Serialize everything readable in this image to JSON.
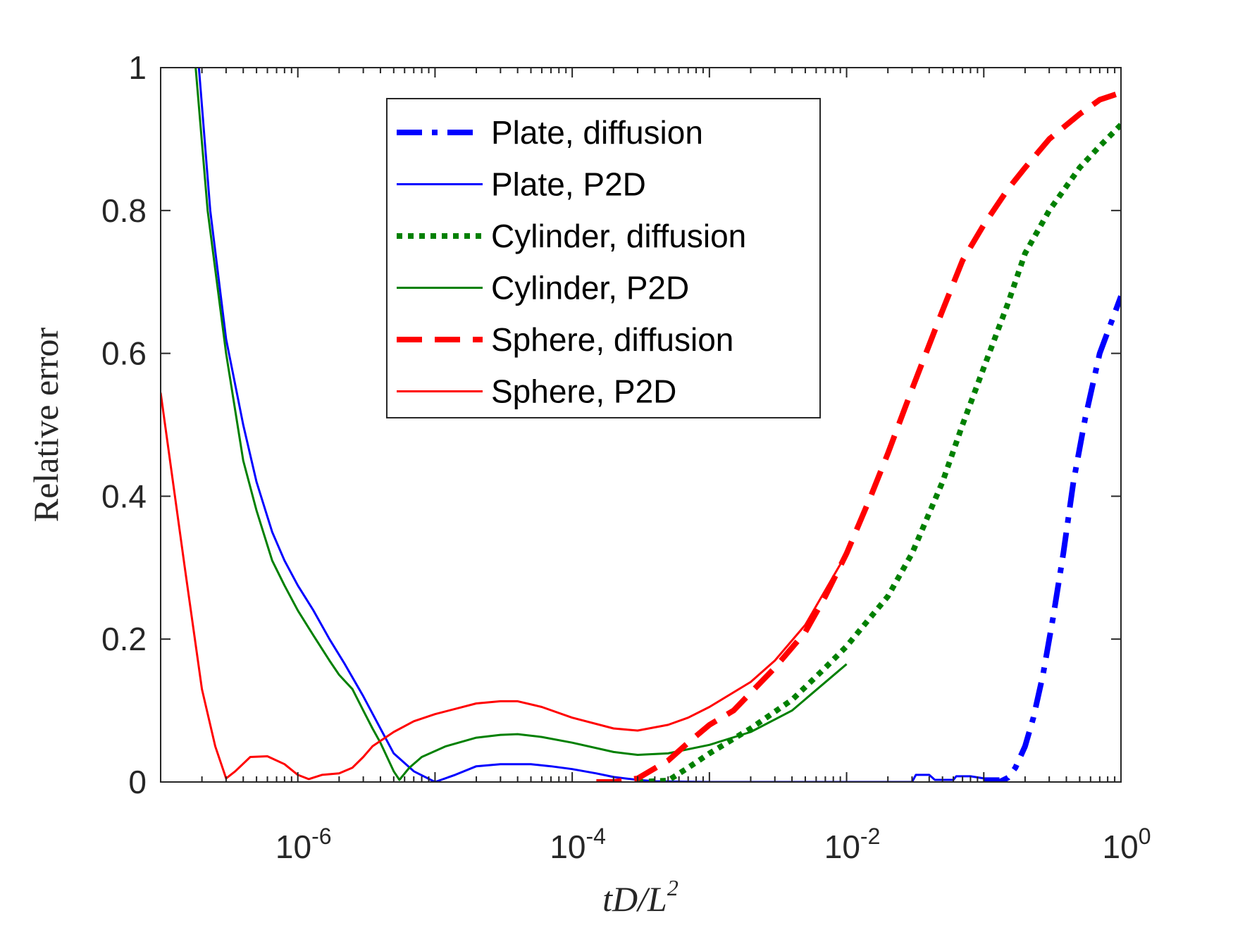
{
  "chart_data": {
    "type": "line",
    "x_scale": "log",
    "xlim": [
      1e-07,
      1
    ],
    "ylim": [
      0,
      1
    ],
    "xlabel": "tD/L²",
    "ylabel": "Relative error",
    "x_ticks": [
      {
        "value": 1e-06,
        "base": "10",
        "exp": "-6"
      },
      {
        "value": 0.0001,
        "base": "10",
        "exp": "-4"
      },
      {
        "value": 0.01,
        "base": "10",
        "exp": "-2"
      },
      {
        "value": 1,
        "base": "10",
        "exp": "0"
      }
    ],
    "y_ticks": [
      {
        "value": 0,
        "label": "0"
      },
      {
        "value": 0.2,
        "label": "0.2"
      },
      {
        "value": 0.4,
        "label": "0.4"
      },
      {
        "value": 0.6,
        "label": "0.6"
      },
      {
        "value": 0.8,
        "label": "0.8"
      },
      {
        "value": 1,
        "label": "1"
      }
    ],
    "legend_position": "top-center",
    "series": [
      {
        "name": "Plate, diffusion",
        "color": "#0000ff",
        "style": "dashdot",
        "width": 8,
        "points": [
          [
            0.1,
            0
          ],
          [
            0.13,
            0
          ],
          [
            0.15,
            0.006
          ],
          [
            0.17,
            0.02
          ],
          [
            0.2,
            0.05
          ],
          [
            0.23,
            0.09
          ],
          [
            0.27,
            0.15
          ],
          [
            0.32,
            0.23
          ],
          [
            0.38,
            0.32
          ],
          [
            0.45,
            0.42
          ],
          [
            0.55,
            0.51
          ],
          [
            0.7,
            0.6
          ],
          [
            1,
            0.68
          ]
        ]
      },
      {
        "name": "Plate, P2D",
        "color": "#0000ff",
        "style": "solid",
        "width": 3,
        "points": [
          [
            1.9e-07,
            1.0
          ],
          [
            2.3e-07,
            0.8
          ],
          [
            3e-07,
            0.62
          ],
          [
            4e-07,
            0.5
          ],
          [
            5e-07,
            0.42
          ],
          [
            6.5e-07,
            0.35
          ],
          [
            8e-07,
            0.31
          ],
          [
            1e-06,
            0.275
          ],
          [
            1.3e-06,
            0.24
          ],
          [
            1.7e-06,
            0.2
          ],
          [
            2.2e-06,
            0.165
          ],
          [
            3e-06,
            0.12
          ],
          [
            4e-06,
            0.075
          ],
          [
            5e-06,
            0.04
          ],
          [
            7e-06,
            0.015
          ],
          [
            1e-05,
            0
          ],
          [
            1.4e-05,
            0.01
          ],
          [
            2e-05,
            0.022
          ],
          [
            3e-05,
            0.025
          ],
          [
            5e-05,
            0.025
          ],
          [
            7e-05,
            0.022
          ],
          [
            0.0001,
            0.018
          ],
          [
            0.00015,
            0.012
          ],
          [
            0.0002,
            0.007
          ],
          [
            0.0003,
            0.003
          ],
          [
            0.0004,
            0.001
          ],
          [
            0.001,
            0
          ],
          [
            0.03,
            0
          ],
          [
            0.032,
            0.01
          ],
          [
            0.04,
            0.01
          ],
          [
            0.044,
            0.003
          ],
          [
            0.06,
            0.003
          ],
          [
            0.063,
            0.008
          ],
          [
            0.08,
            0.008
          ],
          [
            0.1,
            0.005
          ],
          [
            0.13,
            0.005
          ]
        ]
      },
      {
        "name": "Cylinder, diffusion",
        "color": "#008000",
        "style": "dotted",
        "width": 8,
        "points": [
          [
            0.0003,
            0
          ],
          [
            0.0005,
            0.002
          ],
          [
            0.0007,
            0.02
          ],
          [
            0.001,
            0.04
          ],
          [
            0.002,
            0.075
          ],
          [
            0.004,
            0.115
          ],
          [
            0.007,
            0.16
          ],
          [
            0.01,
            0.19
          ],
          [
            0.02,
            0.26
          ],
          [
            0.03,
            0.32
          ],
          [
            0.05,
            0.42
          ],
          [
            0.07,
            0.5
          ],
          [
            0.1,
            0.58
          ],
          [
            0.15,
            0.67
          ],
          [
            0.2,
            0.74
          ],
          [
            0.3,
            0.8
          ],
          [
            0.5,
            0.86
          ],
          [
            0.7,
            0.89
          ],
          [
            1,
            0.92
          ]
        ]
      },
      {
        "name": "Cylinder, P2D",
        "color": "#008000",
        "style": "solid",
        "width": 3,
        "points": [
          [
            1.8e-07,
            1.0
          ],
          [
            2.2e-07,
            0.8
          ],
          [
            3e-07,
            0.6
          ],
          [
            4e-07,
            0.45
          ],
          [
            5e-07,
            0.38
          ],
          [
            6.5e-07,
            0.31
          ],
          [
            8e-07,
            0.275
          ],
          [
            1e-06,
            0.24
          ],
          [
            1.3e-06,
            0.205
          ],
          [
            1.7e-06,
            0.17
          ],
          [
            2e-06,
            0.15
          ],
          [
            2.5e-06,
            0.13
          ],
          [
            3e-06,
            0.1
          ],
          [
            3.5e-06,
            0.075
          ],
          [
            4e-06,
            0.055
          ],
          [
            5e-06,
            0.015
          ],
          [
            5.5e-06,
            0.003
          ],
          [
            6.5e-06,
            0.02
          ],
          [
            8e-06,
            0.035
          ],
          [
            1.2e-05,
            0.05
          ],
          [
            2e-05,
            0.062
          ],
          [
            3e-05,
            0.066
          ],
          [
            4e-05,
            0.067
          ],
          [
            6e-05,
            0.063
          ],
          [
            0.0001,
            0.055
          ],
          [
            0.0002,
            0.042
          ],
          [
            0.0003,
            0.038
          ],
          [
            0.0005,
            0.04
          ],
          [
            0.001,
            0.052
          ],
          [
            0.002,
            0.07
          ],
          [
            0.004,
            0.1
          ],
          [
            0.01,
            0.165
          ]
        ]
      },
      {
        "name": "Sphere, diffusion",
        "color": "#ff0000",
        "style": "dashed",
        "width": 8,
        "points": [
          [
            0.00015,
            0
          ],
          [
            0.0002,
            0
          ],
          [
            0.0003,
            0.005
          ],
          [
            0.0005,
            0.03
          ],
          [
            0.0007,
            0.055
          ],
          [
            0.001,
            0.08
          ],
          [
            0.0015,
            0.1
          ],
          [
            0.002,
            0.125
          ],
          [
            0.003,
            0.16
          ],
          [
            0.005,
            0.21
          ],
          [
            0.007,
            0.26
          ],
          [
            0.01,
            0.32
          ],
          [
            0.015,
            0.4
          ],
          [
            0.02,
            0.46
          ],
          [
            0.03,
            0.55
          ],
          [
            0.05,
            0.66
          ],
          [
            0.07,
            0.73
          ],
          [
            0.1,
            0.78
          ],
          [
            0.15,
            0.83
          ],
          [
            0.2,
            0.86
          ],
          [
            0.3,
            0.9
          ],
          [
            0.5,
            0.935
          ],
          [
            0.7,
            0.955
          ],
          [
            1,
            0.965
          ]
        ]
      },
      {
        "name": "Sphere, P2D",
        "color": "#ff0000",
        "style": "solid",
        "width": 3,
        "points": [
          [
            1e-07,
            0.545
          ],
          [
            1.5e-07,
            0.3
          ],
          [
            2e-07,
            0.13
          ],
          [
            2.5e-07,
            0.05
          ],
          [
            3e-07,
            0.005
          ],
          [
            3.5e-07,
            0.015
          ],
          [
            4.5e-07,
            0.035
          ],
          [
            6e-07,
            0.036
          ],
          [
            8e-07,
            0.025
          ],
          [
            1e-06,
            0.01
          ],
          [
            1.2e-06,
            0.004
          ],
          [
            1.5e-06,
            0.01
          ],
          [
            2e-06,
            0.012
          ],
          [
            2.5e-06,
            0.02
          ],
          [
            3e-06,
            0.035
          ],
          [
            3.5e-06,
            0.05
          ],
          [
            5e-06,
            0.07
          ],
          [
            7e-06,
            0.085
          ],
          [
            1e-05,
            0.095
          ],
          [
            2e-05,
            0.11
          ],
          [
            3e-05,
            0.113
          ],
          [
            4e-05,
            0.113
          ],
          [
            6e-05,
            0.105
          ],
          [
            0.0001,
            0.09
          ],
          [
            0.0002,
            0.075
          ],
          [
            0.0003,
            0.072
          ],
          [
            0.0005,
            0.08
          ],
          [
            0.0007,
            0.09
          ],
          [
            0.001,
            0.105
          ],
          [
            0.002,
            0.14
          ],
          [
            0.003,
            0.17
          ],
          [
            0.005,
            0.22
          ],
          [
            0.01,
            0.32
          ]
        ]
      }
    ]
  }
}
